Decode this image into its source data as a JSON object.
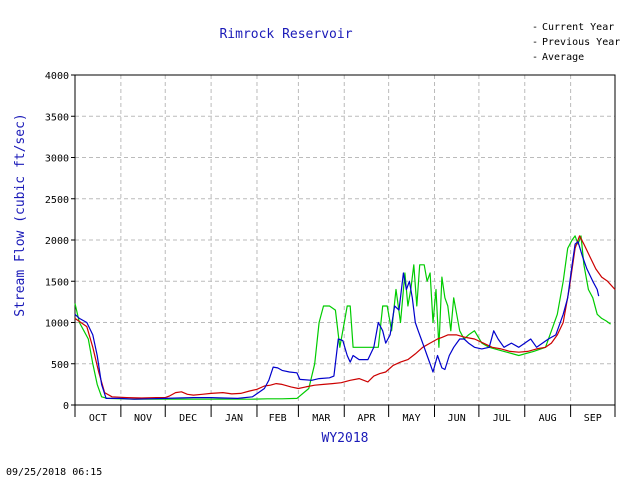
{
  "chart_data": {
    "type": "line",
    "title": "Rimrock Reservoir",
    "xlabel": "WY2018",
    "ylabel": "Stream Flow (cubic ft/sec)",
    "ylim": [
      0,
      4000
    ],
    "xlim": [
      0,
      365
    ],
    "yticks": [
      0,
      500,
      1000,
      1500,
      2000,
      2500,
      3000,
      3500,
      4000
    ],
    "month_labels": [
      "OCT",
      "NOV",
      "DEC",
      "JAN",
      "FEB",
      "MAR",
      "APR",
      "MAY",
      "JUN",
      "JUL",
      "AUG",
      "SEP"
    ],
    "month_starts": [
      0,
      31,
      61,
      92,
      123,
      151,
      182,
      212,
      243,
      273,
      304,
      335
    ],
    "grid": true,
    "legend_position": "top-right",
    "series": [
      {
        "name": "Current Year",
        "color": "#0000cc",
        "points": [
          [
            0,
            1100
          ],
          [
            3,
            1050
          ],
          [
            8,
            1000
          ],
          [
            12,
            850
          ],
          [
            15,
            600
          ],
          [
            18,
            250
          ],
          [
            21,
            80
          ],
          [
            30,
            80
          ],
          [
            40,
            70
          ],
          [
            50,
            75
          ],
          [
            61,
            80
          ],
          [
            70,
            85
          ],
          [
            80,
            90
          ],
          [
            92,
            90
          ],
          [
            100,
            85
          ],
          [
            110,
            80
          ],
          [
            120,
            100
          ],
          [
            128,
            200
          ],
          [
            131,
            300
          ],
          [
            134,
            460
          ],
          [
            137,
            450
          ],
          [
            140,
            420
          ],
          [
            145,
            400
          ],
          [
            150,
            390
          ],
          [
            152,
            310
          ],
          [
            160,
            300
          ],
          [
            165,
            320
          ],
          [
            172,
            330
          ],
          [
            175,
            350
          ],
          [
            178,
            800
          ],
          [
            181,
            780
          ],
          [
            184,
            600
          ],
          [
            186,
            520
          ],
          [
            188,
            600
          ],
          [
            192,
            550
          ],
          [
            198,
            550
          ],
          [
            202,
            700
          ],
          [
            205,
            1000
          ],
          [
            208,
            900
          ],
          [
            210,
            750
          ],
          [
            213,
            850
          ],
          [
            216,
            1200
          ],
          [
            219,
            1150
          ],
          [
            222,
            1600
          ],
          [
            224,
            1400
          ],
          [
            226,
            1500
          ],
          [
            228,
            1300
          ],
          [
            230,
            1000
          ],
          [
            232,
            900
          ],
          [
            234,
            800
          ],
          [
            236,
            700
          ],
          [
            238,
            600
          ],
          [
            240,
            500
          ],
          [
            242,
            400
          ],
          [
            245,
            600
          ],
          [
            248,
            450
          ],
          [
            250,
            430
          ],
          [
            253,
            600
          ],
          [
            256,
            700
          ],
          [
            258,
            750
          ],
          [
            260,
            800
          ],
          [
            263,
            800
          ],
          [
            266,
            750
          ],
          [
            270,
            700
          ],
          [
            275,
            680
          ],
          [
            280,
            700
          ],
          [
            283,
            900
          ],
          [
            286,
            800
          ],
          [
            290,
            700
          ],
          [
            295,
            750
          ],
          [
            300,
            700
          ],
          [
            304,
            750
          ],
          [
            308,
            800
          ],
          [
            312,
            700
          ],
          [
            316,
            750
          ],
          [
            320,
            800
          ],
          [
            325,
            850
          ],
          [
            330,
            1100
          ],
          [
            333,
            1300
          ],
          [
            336,
            1700
          ],
          [
            338,
            1950
          ],
          [
            340,
            1980
          ],
          [
            343,
            1800
          ],
          [
            346,
            1650
          ],
          [
            350,
            1500
          ],
          [
            353,
            1400
          ],
          [
            354,
            1320
          ]
        ]
      },
      {
        "name": "Previous Year",
        "color": "#00cc00",
        "points": [
          [
            0,
            1230
          ],
          [
            3,
            1000
          ],
          [
            6,
            900
          ],
          [
            9,
            800
          ],
          [
            12,
            500
          ],
          [
            15,
            250
          ],
          [
            18,
            100
          ],
          [
            22,
            80
          ],
          [
            30,
            75
          ],
          [
            40,
            70
          ],
          [
            50,
            70
          ],
          [
            61,
            70
          ],
          [
            70,
            70
          ],
          [
            80,
            70
          ],
          [
            92,
            70
          ],
          [
            100,
            70
          ],
          [
            110,
            70
          ],
          [
            120,
            70
          ],
          [
            130,
            75
          ],
          [
            140,
            75
          ],
          [
            150,
            80
          ],
          [
            158,
            200
          ],
          [
            162,
            500
          ],
          [
            165,
            1000
          ],
          [
            168,
            1200
          ],
          [
            172,
            1200
          ],
          [
            176,
            1150
          ],
          [
            179,
            700
          ],
          [
            182,
            1000
          ],
          [
            184,
            1200
          ],
          [
            186,
            1200
          ],
          [
            188,
            700
          ],
          [
            195,
            700
          ],
          [
            205,
            700
          ],
          [
            208,
            1200
          ],
          [
            211,
            1200
          ],
          [
            214,
            900
          ],
          [
            217,
            1400
          ],
          [
            220,
            1000
          ],
          [
            223,
            1600
          ],
          [
            225,
            1200
          ],
          [
            227,
            1400
          ],
          [
            229,
            1700
          ],
          [
            231,
            1200
          ],
          [
            233,
            1700
          ],
          [
            236,
            1700
          ],
          [
            238,
            1500
          ],
          [
            240,
            1600
          ],
          [
            242,
            1000
          ],
          [
            244,
            1400
          ],
          [
            246,
            700
          ],
          [
            248,
            1550
          ],
          [
            250,
            1300
          ],
          [
            252,
            1200
          ],
          [
            254,
            900
          ],
          [
            256,
            1300
          ],
          [
            258,
            1100
          ],
          [
            260,
            900
          ],
          [
            263,
            800
          ],
          [
            266,
            850
          ],
          [
            270,
            900
          ],
          [
            275,
            750
          ],
          [
            280,
            700
          ],
          [
            290,
            650
          ],
          [
            300,
            600
          ],
          [
            310,
            650
          ],
          [
            318,
            700
          ],
          [
            322,
            900
          ],
          [
            326,
            1100
          ],
          [
            330,
            1500
          ],
          [
            333,
            1900
          ],
          [
            336,
            2000
          ],
          [
            338,
            2050
          ],
          [
            340,
            1950
          ],
          [
            342,
            2050
          ],
          [
            344,
            1700
          ],
          [
            347,
            1400
          ],
          [
            350,
            1300
          ],
          [
            353,
            1100
          ],
          [
            356,
            1050
          ],
          [
            359,
            1020
          ],
          [
            362,
            980
          ]
        ]
      },
      {
        "name": "Average",
        "color": "#cc0000",
        "points": [
          [
            0,
            1050
          ],
          [
            4,
            1000
          ],
          [
            8,
            950
          ],
          [
            12,
            700
          ],
          [
            16,
            400
          ],
          [
            20,
            150
          ],
          [
            25,
            100
          ],
          [
            35,
            90
          ],
          [
            45,
            85
          ],
          [
            55,
            90
          ],
          [
            61,
            90
          ],
          [
            64,
            110
          ],
          [
            68,
            150
          ],
          [
            72,
            160
          ],
          [
            76,
            130
          ],
          [
            80,
            120
          ],
          [
            86,
            130
          ],
          [
            92,
            140
          ],
          [
            100,
            150
          ],
          [
            106,
            135
          ],
          [
            112,
            140
          ],
          [
            118,
            170
          ],
          [
            123,
            190
          ],
          [
            128,
            230
          ],
          [
            132,
            240
          ],
          [
            136,
            260
          ],
          [
            140,
            250
          ],
          [
            146,
            220
          ],
          [
            151,
            200
          ],
          [
            156,
            220
          ],
          [
            162,
            240
          ],
          [
            168,
            250
          ],
          [
            174,
            260
          ],
          [
            180,
            270
          ],
          [
            186,
            300
          ],
          [
            192,
            320
          ],
          [
            198,
            280
          ],
          [
            202,
            350
          ],
          [
            206,
            380
          ],
          [
            210,
            400
          ],
          [
            215,
            480
          ],
          [
            220,
            520
          ],
          [
            225,
            550
          ],
          [
            230,
            620
          ],
          [
            235,
            700
          ],
          [
            240,
            750
          ],
          [
            245,
            800
          ],
          [
            248,
            820
          ],
          [
            252,
            850
          ],
          [
            258,
            850
          ],
          [
            264,
            820
          ],
          [
            270,
            800
          ],
          [
            276,
            750
          ],
          [
            282,
            700
          ],
          [
            288,
            680
          ],
          [
            294,
            650
          ],
          [
            300,
            640
          ],
          [
            306,
            650
          ],
          [
            312,
            680
          ],
          [
            318,
            700
          ],
          [
            322,
            750
          ],
          [
            326,
            850
          ],
          [
            330,
            1000
          ],
          [
            334,
            1400
          ],
          [
            338,
            1900
          ],
          [
            341,
            2050
          ],
          [
            344,
            1950
          ],
          [
            348,
            1800
          ],
          [
            352,
            1650
          ],
          [
            356,
            1550
          ],
          [
            360,
            1500
          ],
          [
            365,
            1400
          ]
        ]
      }
    ]
  },
  "timestamp": "09/25/2018 06:15"
}
